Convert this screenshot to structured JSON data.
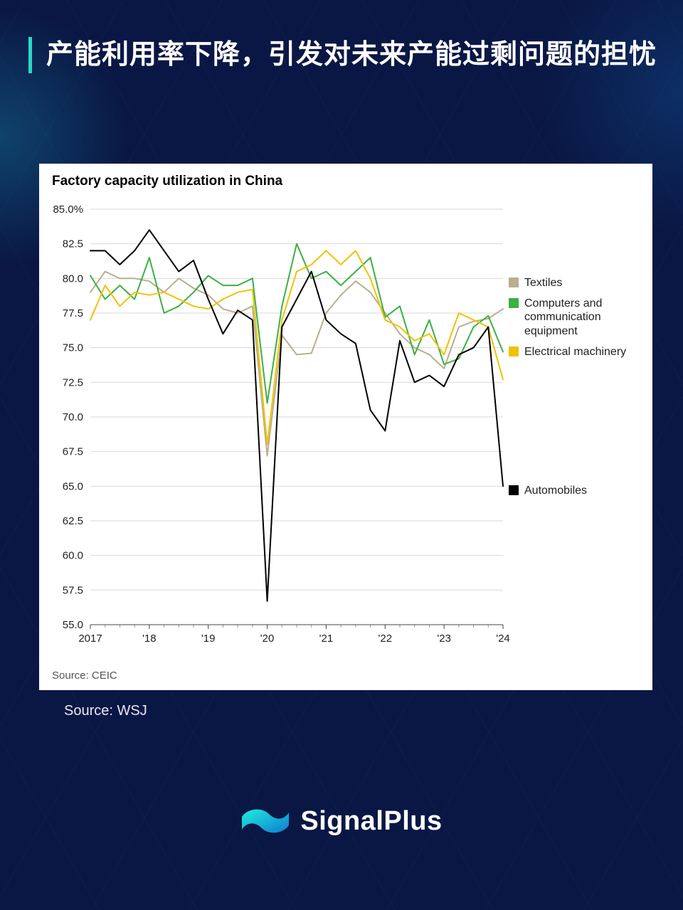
{
  "title": "产能利用率下降，引发对未来产能过剩问题的担忧",
  "outer_source": "Source: WSJ",
  "brand": "SignalPlus",
  "chart": {
    "type": "line",
    "title": "Factory capacity utilization in China",
    "source": "Source: CEIC",
    "background_color": "#ffffff",
    "grid_color": "#d9d9d9",
    "axis_color": "#444444",
    "title_fontsize": 19,
    "label_fontsize": 15,
    "line_width": 2,
    "ylim": [
      55.0,
      85.0
    ],
    "ytick_step": 2.5,
    "ytick_labels": [
      "55.0",
      "57.5",
      "60.0",
      "62.5",
      "65.0",
      "67.5",
      "70.0",
      "72.5",
      "75.0",
      "77.5",
      "80.0",
      "82.5",
      "85.0%"
    ],
    "x_categories": [
      "2017",
      "'18",
      "'19",
      "'20",
      "'21",
      "'22",
      "'23",
      "'24"
    ],
    "n_points": 29,
    "series": [
      {
        "name": "Textiles",
        "color": "#b9ae8f",
        "values": [
          79.0,
          80.5,
          80.0,
          80.0,
          79.8,
          79.0,
          80.0,
          79.3,
          78.8,
          77.8,
          77.5,
          78.0,
          67.2,
          75.9,
          74.5,
          74.6,
          77.5,
          78.8,
          79.8,
          79.0,
          77.5,
          76.0,
          75.0,
          74.5,
          73.5,
          76.5,
          76.9,
          77.1,
          77.8
        ]
      },
      {
        "name": "Computers and communication equipment",
        "color": "#3cb043",
        "values": [
          80.2,
          78.5,
          79.5,
          78.5,
          81.5,
          77.5,
          78.0,
          79.0,
          80.2,
          79.5,
          79.5,
          80.0,
          71.0,
          78.0,
          82.5,
          80.0,
          80.5,
          79.5,
          80.5,
          81.5,
          77.2,
          78.0,
          74.5,
          77.0,
          73.8,
          74.2,
          76.5,
          77.3,
          74.7
        ]
      },
      {
        "name": "Electrical machinery",
        "color": "#f2c200",
        "values": [
          77.0,
          79.5,
          78.0,
          79.0,
          78.8,
          79.0,
          78.5,
          78.0,
          77.8,
          78.5,
          79.0,
          79.2,
          68.0,
          77.0,
          80.5,
          81.0,
          82.0,
          81.0,
          82.0,
          80.0,
          77.0,
          76.5,
          75.5,
          76.0,
          74.5,
          77.5,
          77.0,
          76.5,
          72.7
        ]
      },
      {
        "name": "Automobiles",
        "color": "#000000",
        "values": [
          82.0,
          82.0,
          81.0,
          82.0,
          83.5,
          82.0,
          80.5,
          81.3,
          78.5,
          76.0,
          77.7,
          77.0,
          56.7,
          76.5,
          78.5,
          80.5,
          77.0,
          76.0,
          75.3,
          70.5,
          69.0,
          75.5,
          72.5,
          73.0,
          72.2,
          74.5,
          75.0,
          76.5,
          65.0
        ]
      }
    ],
    "legend": {
      "items": [
        {
          "label": "Textiles",
          "color": "#b9ae8f"
        },
        {
          "label": "Computers and communication equipment",
          "color": "#3cb043"
        },
        {
          "label": "Electrical machinery",
          "color": "#f2c200"
        },
        {
          "label": "Automobiles",
          "color": "#000000"
        }
      ]
    }
  },
  "brand_logo_colors": [
    "#1feedb",
    "#0f7bd4"
  ]
}
